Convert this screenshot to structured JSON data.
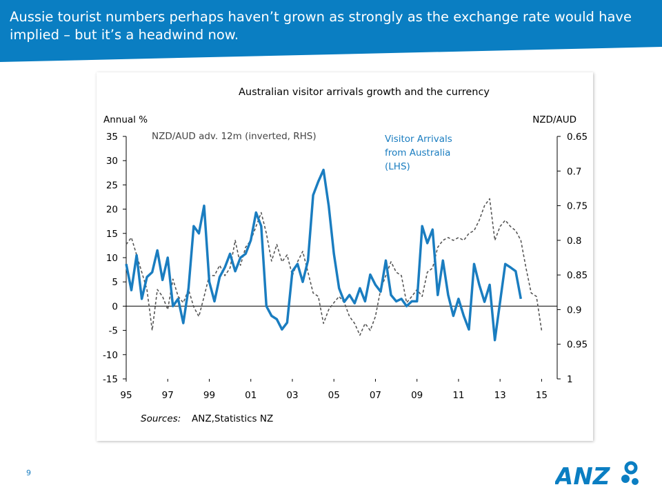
{
  "slide_title": "Aussie tourist numbers perhaps haven’t grown as strongly as the exchange rate would have implied – but it’s a headwind now.",
  "page_number": "9",
  "logo": "ANZ",
  "chart_data": {
    "type": "line",
    "title": "Australian visitor arrivals growth and the currency",
    "y_axis_label": "Annual %",
    "y2_axis_label": "NZD/AUD",
    "annotations": [
      "NZD/AUD adv. 12m (inverted, RHS)",
      [
        "Visitor Arrivals",
        "from Australia",
        "(LHS)"
      ]
    ],
    "source": [
      "Sources:",
      "ANZ,Statistics NZ"
    ],
    "x": [
      1995,
      1995.25,
      1995.5,
      1995.75,
      1996,
      1996.25,
      1996.5,
      1996.75,
      1997,
      1997.25,
      1997.5,
      1997.75,
      1998,
      1998.25,
      1998.5,
      1998.75,
      1999,
      1999.25,
      1999.5,
      1999.75,
      2000,
      2000.25,
      2000.5,
      2000.75,
      2001,
      2001.25,
      2001.5,
      2001.75,
      2002,
      2002.25,
      2002.5,
      2002.75,
      2003,
      2003.25,
      2003.5,
      2003.75,
      2004,
      2004.25,
      2004.5,
      2004.75,
      2005,
      2005.25,
      2005.5,
      2005.75,
      2006,
      2006.25,
      2006.5,
      2006.75,
      2007,
      2007.25,
      2007.5,
      2007.75,
      2008,
      2008.25,
      2008.5,
      2008.75,
      2009,
      2009.25,
      2009.5,
      2009.75,
      2010,
      2010.25,
      2010.5,
      2010.75,
      2011,
      2011.25,
      2011.5,
      2011.75,
      2012,
      2012.25,
      2012.5,
      2012.75,
      2013,
      2013.25,
      2013.5,
      2013.75,
      2014,
      2014.25,
      2014.5,
      2014.75,
      2015
    ],
    "xlim": [
      1995,
      2015.75
    ],
    "xticks": [
      {
        "value": 1995,
        "label": "95"
      },
      {
        "value": 1997,
        "label": "97"
      },
      {
        "value": 1999,
        "label": "99"
      },
      {
        "value": 2001,
        "label": "01"
      },
      {
        "value": 2003,
        "label": "03"
      },
      {
        "value": 2005,
        "label": "05"
      },
      {
        "value": 2007,
        "label": "07"
      },
      {
        "value": 2009,
        "label": "09"
      },
      {
        "value": 2011,
        "label": "11"
      },
      {
        "value": 2013,
        "label": "13"
      },
      {
        "value": 2015,
        "label": "15"
      }
    ],
    "ylim": [
      -15,
      35
    ],
    "yticks": [
      35,
      30,
      25,
      20,
      15,
      10,
      5,
      0,
      -5,
      -10,
      -15
    ],
    "y2lim": [
      0.65,
      1
    ],
    "y2_inverted": true,
    "y2ticks": [
      0.65,
      0.7,
      0.75,
      0.8,
      0.85,
      0.9,
      0.95,
      1
    ],
    "series": [
      {
        "name": "Visitor Arrivals from Australia (LHS)",
        "color": "#1a7dc0",
        "dashed": false,
        "values": [
          8.7,
          3.3,
          10.5,
          1.5,
          6,
          7,
          11.5,
          5.4,
          10,
          0,
          1.5,
          -3.5,
          3.7,
          16.5,
          15,
          20.7,
          5,
          1,
          6,
          8,
          10.8,
          7.2,
          10,
          10.8,
          13.6,
          19.3,
          16.5,
          0,
          -2,
          -2.7,
          -4.8,
          -3.4,
          7.2,
          8.7,
          5,
          9.4,
          22.9,
          25.7,
          28.1,
          20.7,
          10.8,
          3.7,
          0.9,
          2.3,
          0.6,
          3.7,
          1,
          6.5,
          4.4,
          3,
          9.4,
          2.3,
          1,
          1.5,
          0,
          1,
          1,
          16.5,
          13,
          15.8,
          2.3,
          9.4,
          2.3,
          -2,
          1.5,
          -2,
          -4.8,
          8.7,
          4.4,
          0.9,
          4.4,
          -7,
          0.9,
          8.7,
          8,
          7.2,
          1.5,
          null,
          null,
          null,
          null
        ]
      },
      {
        "name": "NZD/AUD adv. 12m (inverted, RHS)",
        "color": "#555555",
        "dashed": true,
        "axis": "y2",
        "values": [
          0.806,
          0.796,
          0.821,
          0.846,
          0.871,
          0.93,
          0.871,
          0.881,
          0.9,
          0.856,
          0.881,
          0.89,
          0.871,
          0.896,
          0.91,
          0.881,
          0.851,
          0.851,
          0.836,
          0.851,
          0.84,
          0.8,
          0.836,
          0.81,
          0.8,
          0.78,
          0.76,
          0.79,
          0.83,
          0.806,
          0.831,
          0.821,
          0.851,
          0.831,
          0.816,
          0.846,
          0.876,
          0.881,
          0.92,
          0.9,
          0.89,
          0.881,
          0.89,
          0.91,
          0.92,
          0.937,
          0.92,
          0.93,
          0.91,
          0.871,
          0.851,
          0.831,
          0.846,
          0.851,
          0.89,
          0.881,
          0.871,
          0.881,
          0.846,
          0.84,
          0.81,
          0.8,
          0.796,
          0.8,
          0.796,
          0.8,
          0.79,
          0.786,
          0.771,
          0.75,
          0.74,
          0.8,
          0.78,
          0.771,
          0.78,
          0.786,
          0.8,
          0.84,
          0.876,
          0.881,
          0.93
        ]
      }
    ]
  }
}
